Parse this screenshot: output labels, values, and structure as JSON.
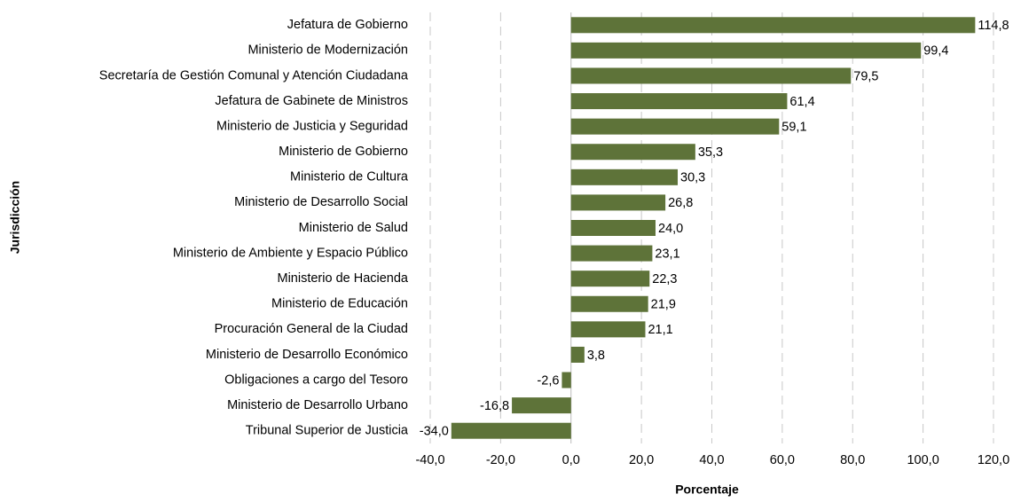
{
  "chart_data": {
    "type": "bar",
    "categories": [
      "Jefatura de Gobierno",
      "Ministerio de Modernización",
      "Secretaría de Gestión Comunal y Atención Ciudadana",
      "Jefatura de Gabinete de Ministros",
      "Ministerio de Justicia y Seguridad",
      "Ministerio de Gobierno",
      "Ministerio de Cultura",
      "Ministerio de Desarrollo Social",
      "Ministerio de Salud",
      "Ministerio de Ambiente y Espacio Público",
      "Ministerio de Hacienda",
      "Ministerio de Educación",
      "Procuración General de la Ciudad",
      "Ministerio de Desarrollo Económico",
      "Obligaciones a cargo del Tesoro",
      "Ministerio de Desarrollo Urbano",
      "Tribunal Superior de Justicia"
    ],
    "values": [
      114.8,
      99.4,
      79.5,
      61.4,
      59.1,
      35.3,
      30.3,
      26.8,
      24.0,
      23.1,
      22.3,
      21.9,
      21.1,
      3.8,
      -2.6,
      -16.8,
      -34.0
    ],
    "value_labels": [
      "114,8",
      "99,4",
      "79,5",
      "61,4",
      "59,1",
      "35,3",
      "30,3",
      "26,8",
      "24,0",
      "23,1",
      "22,3",
      "21,9",
      "21,1",
      "3,8",
      "-2,6",
      "-16,8",
      "-34,0"
    ],
    "color": "#5e7339",
    "xlim": [
      -40,
      120
    ],
    "xticks": [
      {
        "value": -40,
        "label": "-40,0"
      },
      {
        "value": -20,
        "label": "-20,0"
      },
      {
        "value": 0,
        "label": "0,0"
      },
      {
        "value": 20,
        "label": "20,0"
      },
      {
        "value": 40,
        "label": "40,0"
      },
      {
        "value": 60,
        "label": "60,0"
      },
      {
        "value": 80,
        "label": "80,0"
      },
      {
        "value": 100,
        "label": "100,0"
      },
      {
        "value": 120,
        "label": "120,0"
      }
    ],
    "grid": true,
    "x_label": "Porcentaje",
    "y_label": "Jurisdicción"
  }
}
